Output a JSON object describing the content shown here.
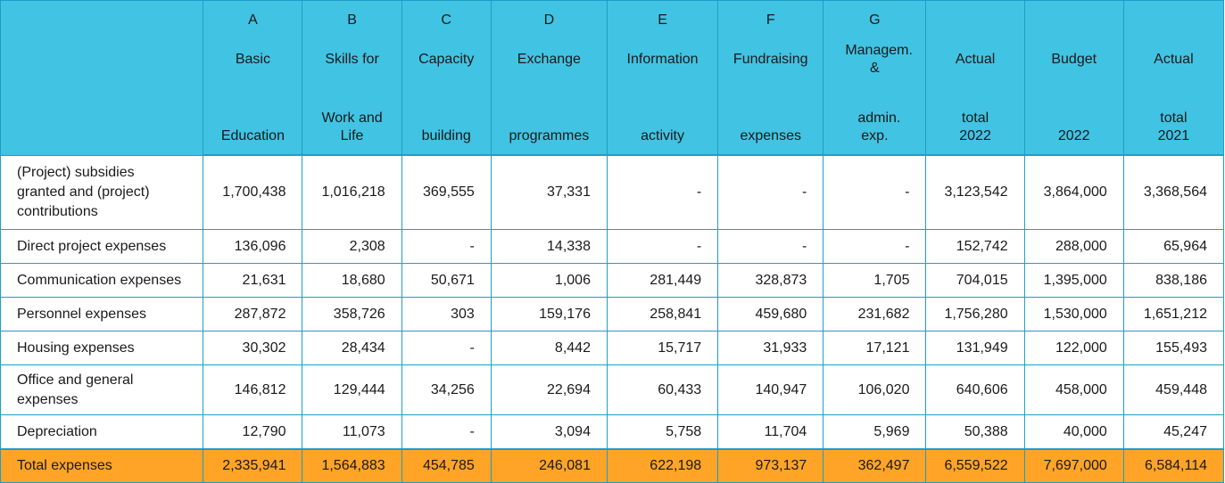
{
  "columns": [
    {
      "letter": "A",
      "line1": "Basic",
      "line2": "Education"
    },
    {
      "letter": "B",
      "line1": "Skills for",
      "line2": "Work and Life"
    },
    {
      "letter": "C",
      "line1": "Capacity",
      "line2": "building"
    },
    {
      "letter": "D",
      "line1": "Exchange",
      "line2": "programmes"
    },
    {
      "letter": "E",
      "line1": "Information",
      "line2": "activity"
    },
    {
      "letter": "F",
      "line1": "Fundraising",
      "line2": "expenses"
    },
    {
      "letter": "G",
      "line1": "Managem. &",
      "line2": "admin. exp."
    },
    {
      "letter": "",
      "line1": "Actual",
      "line2": "total 2022"
    },
    {
      "letter": "",
      "line1": "Budget",
      "line2": "2022"
    },
    {
      "letter": "",
      "line1": "Actual",
      "line2": "total 2021"
    }
  ],
  "rows": [
    {
      "label": "(Project) subsidies granted and (project) contributions",
      "values": [
        "1,700,438",
        "1,016,218",
        "369,555",
        "37,331",
        "-",
        "-",
        "-",
        "3,123,542",
        "3,864,000",
        "3,368,564"
      ]
    },
    {
      "label": "Direct project expenses",
      "values": [
        "136,096",
        "2,308",
        "-",
        "14,338",
        "-",
        "-",
        "-",
        "152,742",
        "288,000",
        "65,964"
      ]
    },
    {
      "label": "Communication expenses",
      "values": [
        "21,631",
        "18,680",
        "50,671",
        "1,006",
        "281,449",
        "328,873",
        "1,705",
        "704,015",
        "1,395,000",
        "838,186"
      ]
    },
    {
      "label": "Personnel expenses",
      "values": [
        "287,872",
        "358,726",
        "303",
        "159,176",
        "258,841",
        "459,680",
        "231,682",
        "1,756,280",
        "1,530,000",
        "1,651,212"
      ]
    },
    {
      "label": "Housing expenses",
      "values": [
        "30,302",
        "28,434",
        "-",
        "8,442",
        "15,717",
        "31,933",
        "17,121",
        "131,949",
        "122,000",
        "155,493"
      ]
    },
    {
      "label": "Office and general expenses",
      "values": [
        "146,812",
        "129,444",
        "34,256",
        "22,694",
        "60,433",
        "140,947",
        "106,020",
        "640,606",
        "458,000",
        "459,448"
      ]
    },
    {
      "label": "Depreciation",
      "values": [
        "12,790",
        "11,073",
        "-",
        "3,094",
        "5,758",
        "11,704",
        "5,969",
        "50,388",
        "40,000",
        "45,247"
      ]
    }
  ],
  "total": {
    "label": "Total expenses",
    "values": [
      "2,335,941",
      "1,564,883",
      "454,785",
      "246,081",
      "622,198",
      "973,137",
      "362,497",
      "6,559,522",
      "7,697,000",
      "6,584,114"
    ]
  },
  "colors": {
    "header": "#41c3e3",
    "total": "#ffa427",
    "border": "#1b9fc6"
  }
}
